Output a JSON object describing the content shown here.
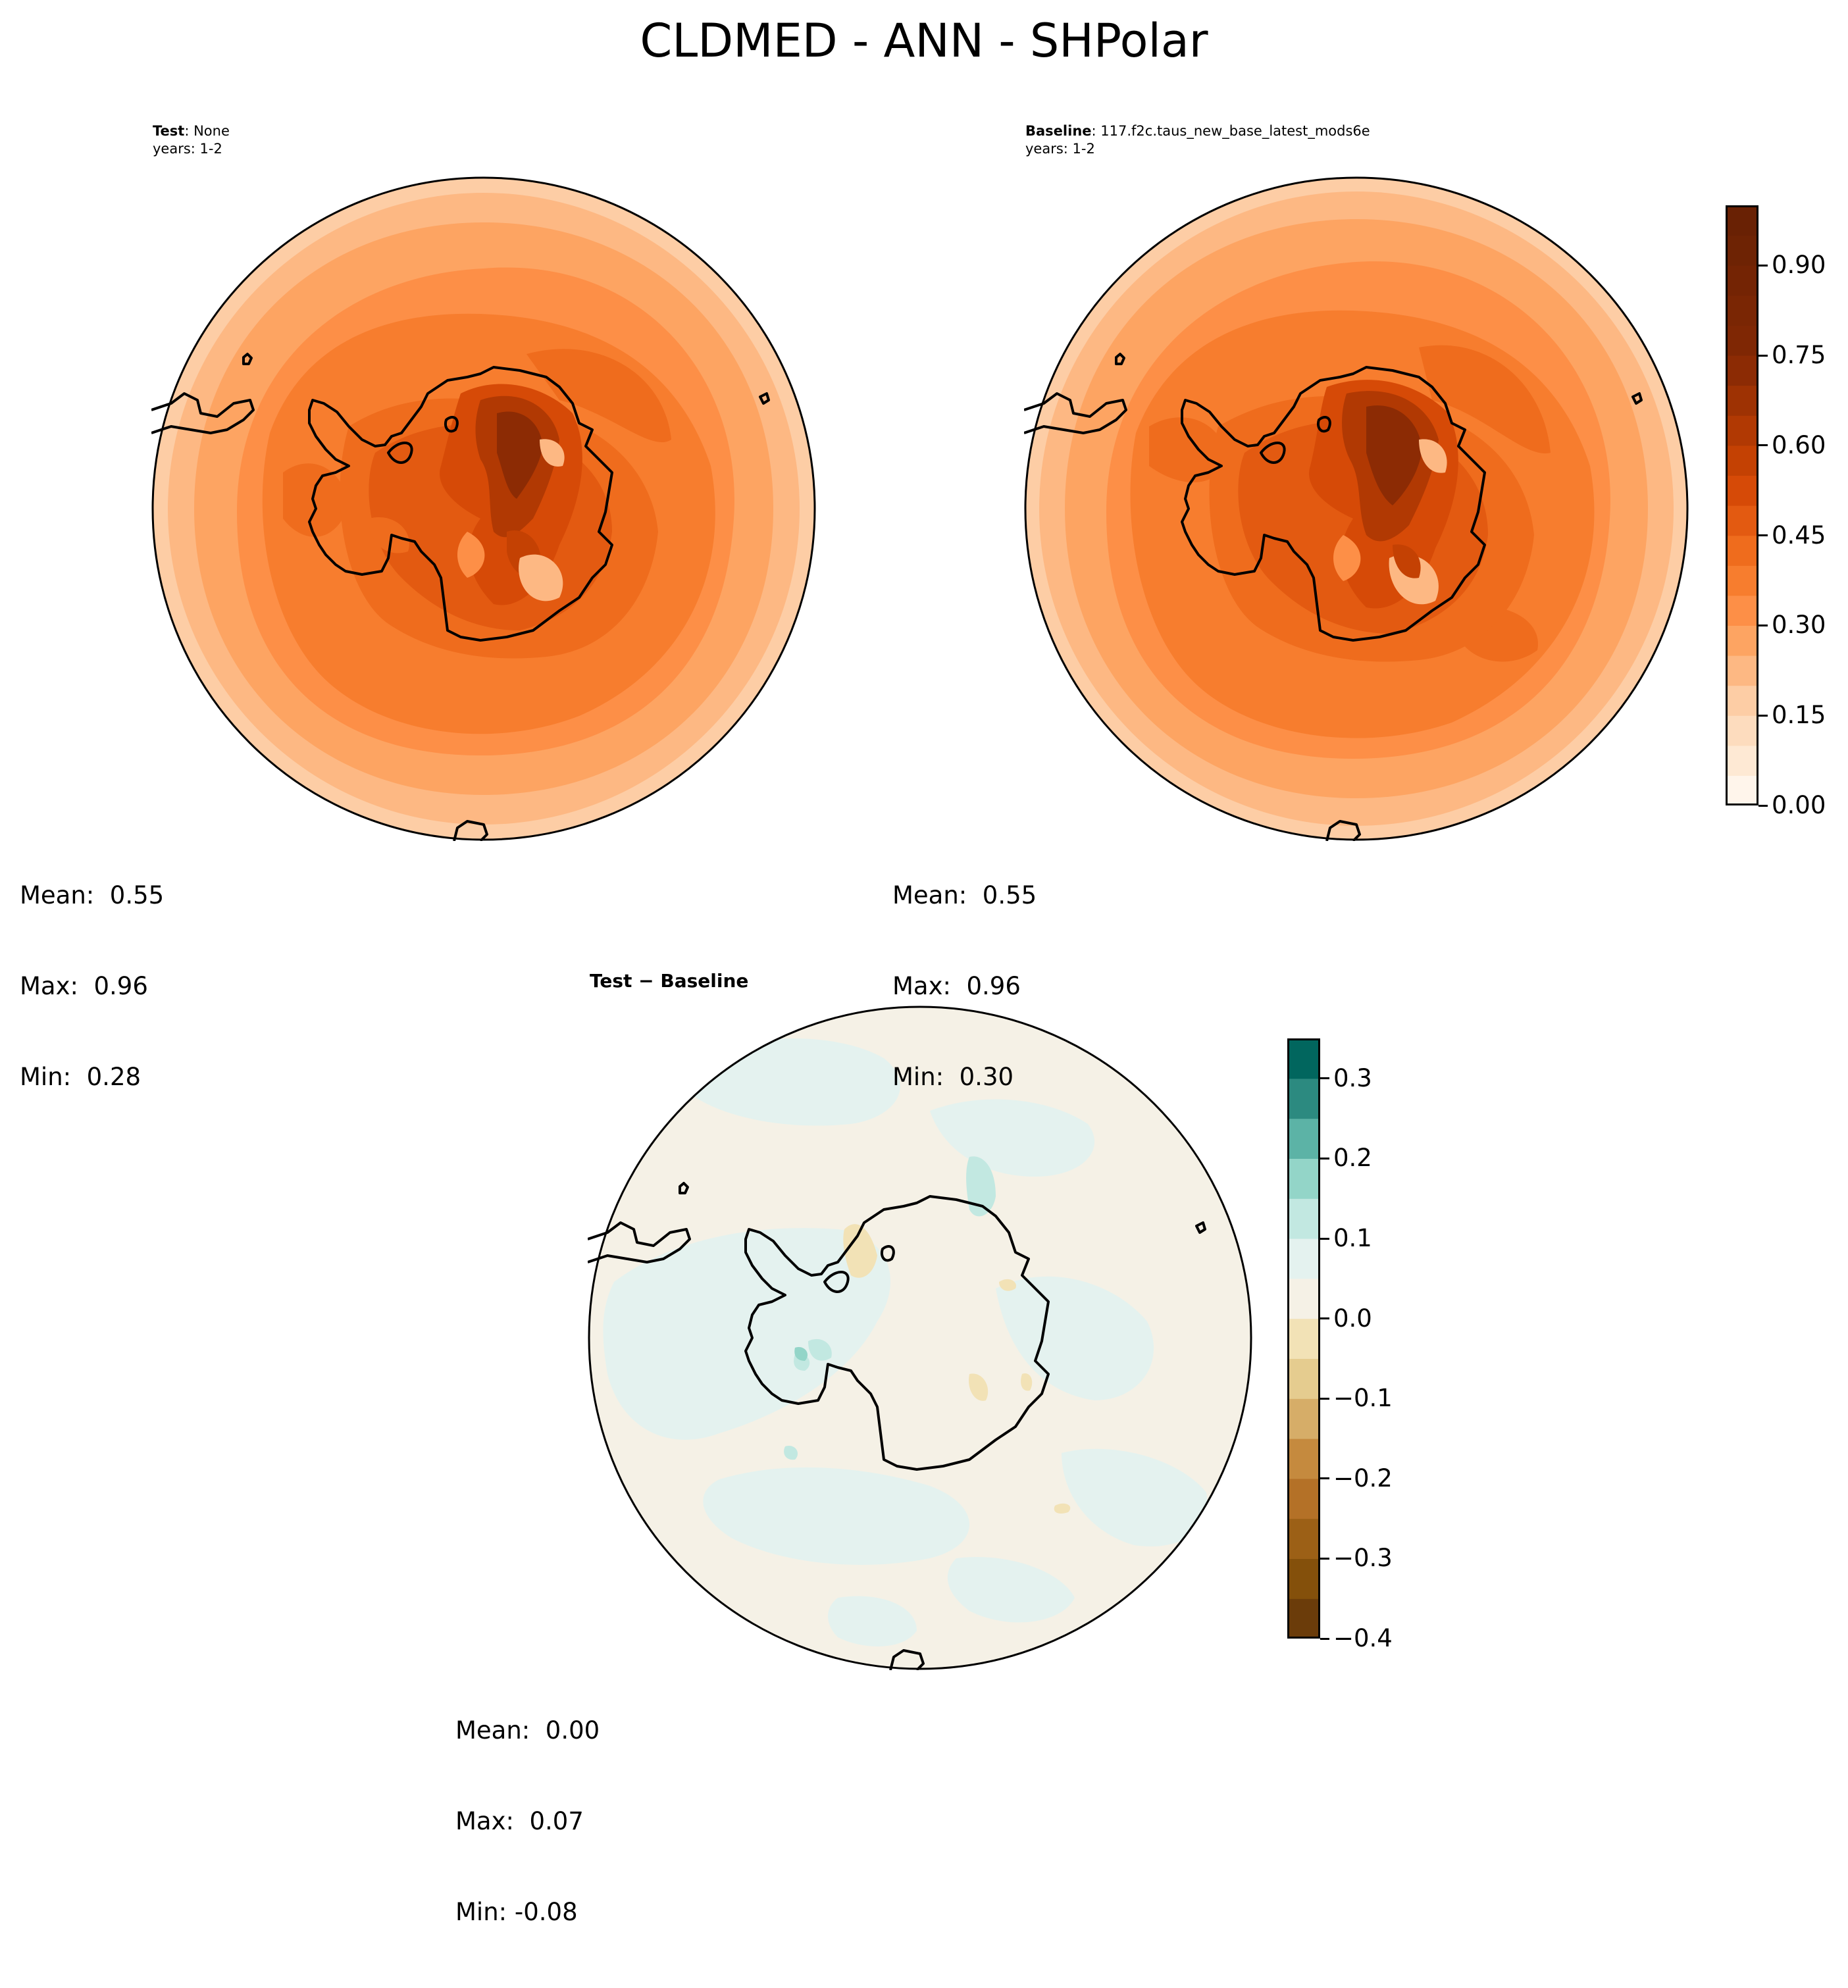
{
  "figure_title": "CLDMED - ANN - SHPolar",
  "panels": [
    {
      "id": "test",
      "title_bold": "Test",
      "title_rest": ": None",
      "subtitle": "years: 1-2",
      "stats": {
        "mean": "Mean:  0.55",
        "max": "Max:  0.96",
        "min": "Min:  0.28"
      }
    },
    {
      "id": "baseline",
      "title_bold": "Baseline",
      "title_rest": ": 117.f2c.taus_new_base_latest_mods6e",
      "subtitle": "years: 1-2",
      "stats": {
        "mean": "Mean:  0.55",
        "max": "Max:  0.96",
        "min": "Min:  0.30"
      }
    },
    {
      "id": "diff",
      "title_bold": "Test − Baseline",
      "title_rest": "",
      "subtitle": "",
      "stats": {
        "mean": "Mean:  0.00",
        "max": "Max:  0.07",
        "min": "Min: -0.08"
      }
    }
  ],
  "colorbars": {
    "main": {
      "range": [
        0.0,
        1.0
      ],
      "levels": 20,
      "ticks": [
        0.0,
        0.15,
        0.3,
        0.45,
        0.6,
        0.75,
        0.9
      ],
      "tick_labels": [
        "0.00",
        "0.15",
        "0.30",
        "0.45",
        "0.60",
        "0.75",
        "0.90"
      ],
      "colors": [
        "#fff5eb",
        "#fee9d4",
        "#fddcbe",
        "#fdcda5",
        "#fdb883",
        "#fda462",
        "#fd8f47",
        "#f77d2e",
        "#ef6c1d",
        "#e35a11",
        "#d64a07",
        "#c44103",
        "#b13903",
        "#9e3203",
        "#8c2b04",
        "#7f2704",
        "#7a2604",
        "#742404",
        "#6e2304",
        "#692104"
      ]
    },
    "diff": {
      "range": [
        -0.4,
        0.35
      ],
      "levels": 15,
      "ticks": [
        -0.4,
        -0.3,
        -0.2,
        -0.1,
        0.0,
        0.1,
        0.2,
        0.3
      ],
      "tick_labels": [
        "−0.4",
        "−0.3",
        "−0.2",
        "−0.1",
        "0.0",
        "0.1",
        "0.2",
        "0.3"
      ],
      "colors": [
        "#6b3c0a",
        "#84500b",
        "#9c6016",
        "#b47127",
        "#c58a3e",
        "#d6ad68",
        "#e5cc8f",
        "#f2e2b6",
        "#f5f1e6",
        "#e4f2ef",
        "#c2e8e1",
        "#93d5c8",
        "#5cb3a6",
        "#2c8a80",
        "#01665e"
      ]
    }
  },
  "map": {
    "projection": "south-polar-stereographic",
    "variable": "CLDMED",
    "season": "ANN",
    "coastline_color": "#000000"
  }
}
